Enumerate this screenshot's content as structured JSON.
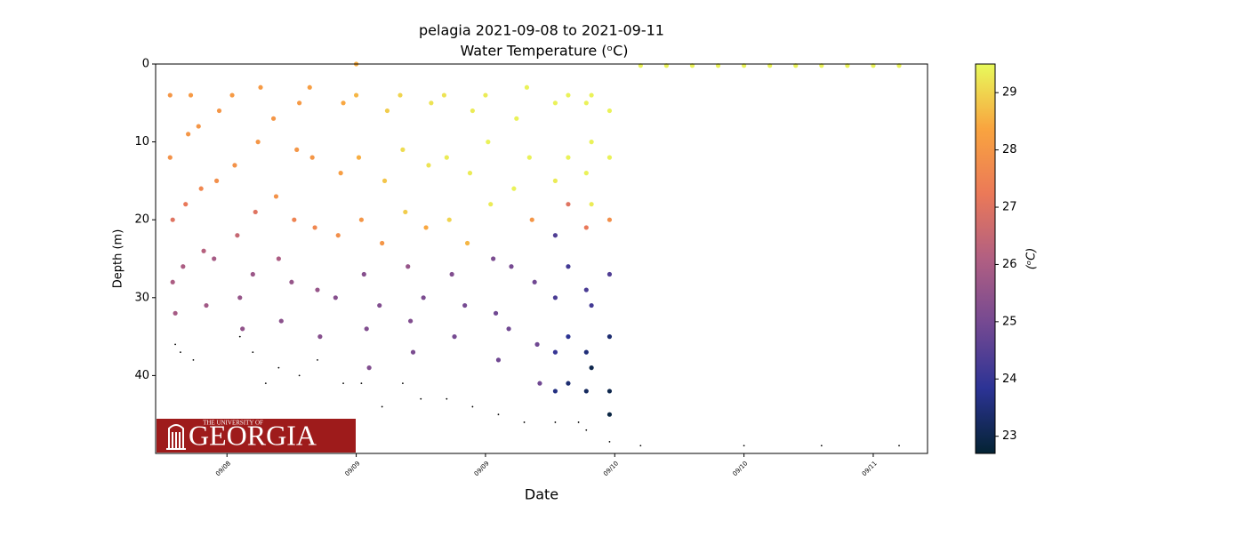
{
  "chart_data": {
    "type": "scatter",
    "title": "pelagia 2021-09-08 to 2021-09-11",
    "subtitle": "Water Temperature (ᵒC)",
    "xlabel": "Date",
    "ylabel": "Depth (m)",
    "xlim": [
      8.224,
      11.21
    ],
    "xticks": [
      {
        "value": 8.5,
        "label": "09/08"
      },
      {
        "value": 9.0,
        "label": "09/09"
      },
      {
        "value": 9.5,
        "label": "09/09"
      },
      {
        "value": 10.0,
        "label": "09/10"
      },
      {
        "value": 10.5,
        "label": "09/10"
      },
      {
        "value": 11.0,
        "label": "09/11"
      }
    ],
    "ylim": [
      0,
      50
    ],
    "invert_y": true,
    "yticks": [
      0,
      10,
      20,
      30,
      40
    ],
    "x": [
      8.28,
      8.28,
      8.29,
      8.29,
      8.3,
      8.33,
      8.34,
      8.35,
      8.36,
      8.39,
      8.4,
      8.41,
      8.42,
      8.45,
      8.46,
      8.47,
      8.52,
      8.53,
      8.54,
      8.55,
      8.56,
      8.6,
      8.61,
      8.62,
      8.63,
      8.68,
      8.69,
      8.7,
      8.71,
      8.75,
      8.76,
      8.77,
      8.78,
      8.82,
      8.83,
      8.84,
      8.85,
      8.86,
      8.92,
      8.93,
      8.94,
      8.95,
      9.0,
      9.01,
      9.02,
      9.03,
      9.04,
      9.05,
      9.09,
      9.1,
      9.11,
      9.12,
      9.17,
      9.18,
      9.19,
      9.2,
      9.21,
      9.22,
      9.26,
      9.27,
      9.28,
      9.29,
      9.34,
      9.35,
      9.36,
      9.37,
      9.38,
      9.42,
      9.43,
      9.44,
      9.45,
      9.5,
      9.51,
      9.52,
      9.53,
      9.54,
      9.55,
      9.59,
      9.6,
      9.61,
      9.62,
      9.66,
      9.67,
      9.68,
      9.69,
      9.7,
      9.71,
      9.77,
      9.77,
      9.77,
      9.77,
      9.77,
      9.77,
      9.82,
      9.82,
      9.82,
      9.82,
      9.82,
      9.82,
      9.89,
      9.89,
      9.89,
      9.89,
      9.89,
      9.89,
      9.91,
      9.91,
      9.91,
      9.91,
      9.91,
      9.98,
      9.98,
      9.98,
      9.98,
      9.98,
      9.98,
      9.98,
      9.0,
      10.1,
      10.2,
      10.3,
      10.4,
      10.5,
      10.6,
      10.7,
      10.8,
      10.9,
      11.0,
      11.1
    ],
    "y": [
      4,
      12,
      20,
      28,
      32,
      26,
      18,
      9,
      4,
      8,
      16,
      24,
      31,
      25,
      15,
      6,
      4,
      13,
      22,
      30,
      34,
      27,
      19,
      10,
      3,
      7,
      17,
      25,
      33,
      28,
      20,
      11,
      5,
      3,
      12,
      21,
      29,
      35,
      30,
      22,
      14,
      5,
      4,
      12,
      20,
      27,
      34,
      39,
      31,
      23,
      15,
      6,
      4,
      11,
      19,
      26,
      33,
      37,
      30,
      21,
      13,
      5,
      4,
      12,
      20,
      27,
      35,
      31,
      23,
      14,
      6,
      4,
      10,
      18,
      25,
      32,
      38,
      34,
      26,
      16,
      7,
      3,
      12,
      20,
      28,
      36,
      41,
      5,
      15,
      22,
      30,
      37,
      42,
      4,
      12,
      18,
      26,
      35,
      41,
      5,
      14,
      21,
      29,
      37,
      42,
      4,
      10,
      18,
      31,
      39,
      6,
      12,
      20,
      27,
      35,
      42,
      45,
      0,
      0.2,
      0.2,
      0.2,
      0.2,
      0.2,
      0.2,
      0.2,
      0.2,
      0.2,
      0.2,
      0.2
    ],
    "colorvalues": [
      28.0,
      27.9,
      27.0,
      26.0,
      25.9,
      26.0,
      27.2,
      28.0,
      28.1,
      28.0,
      27.6,
      26.2,
      25.8,
      25.9,
      27.8,
      28.0,
      28.1,
      27.9,
      26.5,
      25.6,
      25.5,
      25.7,
      27.0,
      28.0,
      28.1,
      28.0,
      27.9,
      26.0,
      25.4,
      25.6,
      27.5,
      28.0,
      28.1,
      28.2,
      28.0,
      27.6,
      25.6,
      25.3,
      25.3,
      27.8,
      28.2,
      28.4,
      28.6,
      28.5,
      28.0,
      25.3,
      25.2,
      25.2,
      25.2,
      28.0,
      28.8,
      28.9,
      29.0,
      29.1,
      28.9,
      25.6,
      25.2,
      25.1,
      25.1,
      28.4,
      29.2,
      29.2,
      29.2,
      29.3,
      29.0,
      25.2,
      25.0,
      25.0,
      28.6,
      29.3,
      29.3,
      29.3,
      29.4,
      29.3,
      25.1,
      24.9,
      24.9,
      24.9,
      25.0,
      29.4,
      29.4,
      29.4,
      29.4,
      28.0,
      24.9,
      24.9,
      24.9,
      29.4,
      29.3,
      24.4,
      24.3,
      24.0,
      23.6,
      29.4,
      29.4,
      27.0,
      24.2,
      23.8,
      23.4,
      29.4,
      29.4,
      27.2,
      24.3,
      23.5,
      23.2,
      29.4,
      29.4,
      29.3,
      24.2,
      23.0,
      29.4,
      29.4,
      27.8,
      24.4,
      23.4,
      23.0,
      22.9,
      28.5,
      29.4,
      29.4,
      29.4,
      29.4,
      29.4,
      29.4,
      29.4,
      29.4,
      29.4,
      29.4,
      29.4
    ],
    "nodata": {
      "color": "#000000",
      "x": [
        8.3,
        8.32,
        8.37,
        8.55,
        8.6,
        8.65,
        8.7,
        8.78,
        8.85,
        8.95,
        9.02,
        9.1,
        9.18,
        9.25,
        9.35,
        9.45,
        9.55,
        9.65,
        9.77,
        9.86,
        9.89,
        9.98,
        10.1,
        10.5,
        10.8,
        11.1
      ],
      "y": [
        36,
        37,
        38,
        35,
        37,
        41,
        39,
        40,
        38,
        41,
        41,
        44,
        41,
        43,
        43,
        44,
        45,
        46,
        46,
        46,
        47,
        48.5,
        49,
        49,
        49,
        49
      ]
    },
    "colorbar": {
      "label": "(ᵒC)",
      "lim": [
        22.7,
        29.5
      ],
      "ticks": [
        23,
        24,
        25,
        26,
        27,
        28,
        29
      ],
      "colormap": [
        "#042333",
        "#2c3395",
        "#744992",
        "#b15f82",
        "#eb7958",
        "#f9a43f",
        "#e8fa5b"
      ]
    }
  },
  "logo": {
    "top": "THE UNIVERSITY OF",
    "name": "GEORGIA"
  }
}
